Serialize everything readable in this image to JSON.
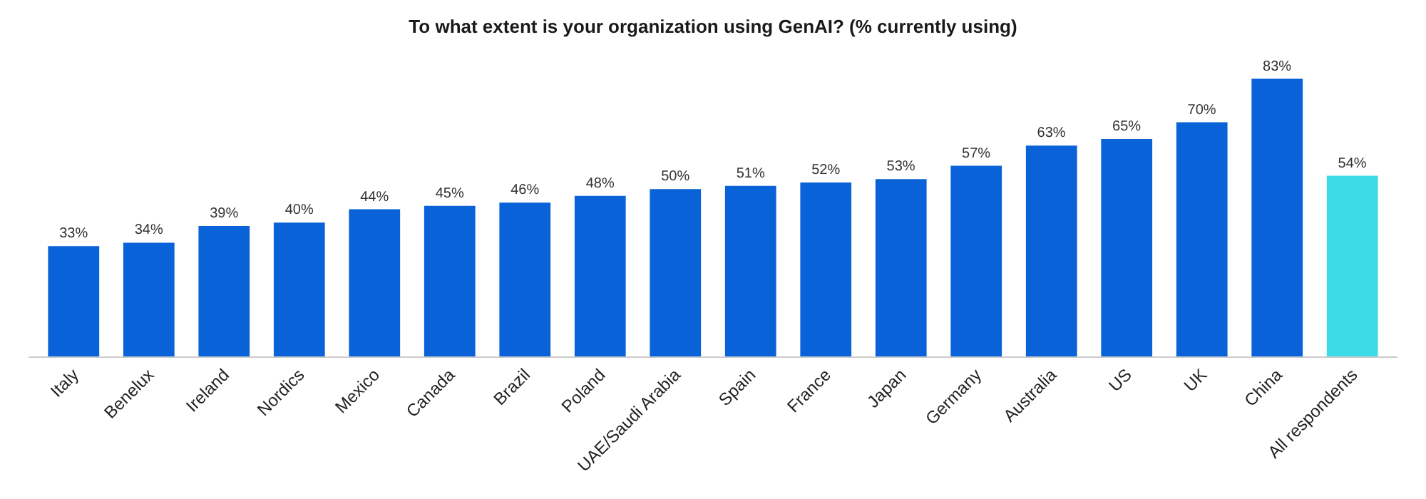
{
  "chart_data": {
    "type": "bar",
    "title": "To what extent is your organization using GenAI? (% currently using)",
    "categories": [
      "Italy",
      "Benelux",
      "Ireland",
      "Nordics",
      "Mexico",
      "Canada",
      "Brazil",
      "Poland",
      "UAE/Saudi Arabia",
      "Spain",
      "France",
      "Japan",
      "Germany",
      "Australia",
      "US",
      "UK",
      "China",
      "All respondents"
    ],
    "values": [
      33,
      34,
      39,
      40,
      44,
      45,
      46,
      48,
      50,
      51,
      52,
      53,
      57,
      63,
      65,
      70,
      83,
      54
    ],
    "value_labels": [
      "33%",
      "34%",
      "39%",
      "40%",
      "44%",
      "45%",
      "46%",
      "48%",
      "50%",
      "51%",
      "52%",
      "53%",
      "57%",
      "63%",
      "65%",
      "70%",
      "83%",
      "54%"
    ],
    "colors": [
      "#0a62d8",
      "#0a62d8",
      "#0a62d8",
      "#0a62d8",
      "#0a62d8",
      "#0a62d8",
      "#0a62d8",
      "#0a62d8",
      "#0a62d8",
      "#0a62d8",
      "#0a62d8",
      "#0a62d8",
      "#0a62d8",
      "#0a62d8",
      "#0a62d8",
      "#0a62d8",
      "#0a62d8",
      "#3ddbe6"
    ],
    "data_labels": false
  }
}
